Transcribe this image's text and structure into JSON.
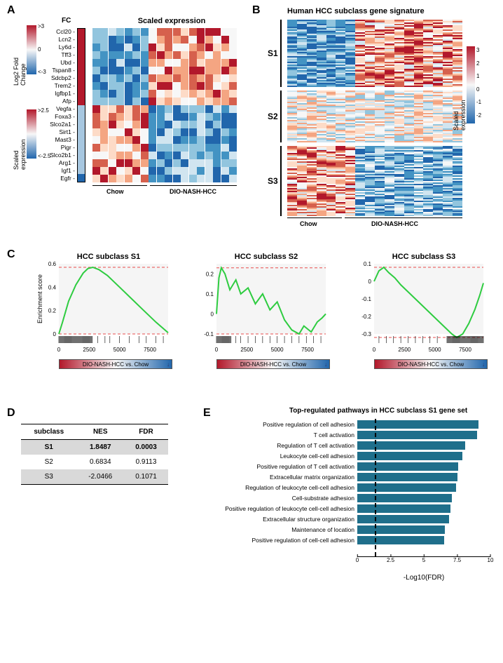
{
  "panelA": {
    "fc_header": "FC",
    "se_header": "Scaled expression",
    "legend_fc": {
      "title": "Log2 Fold Change",
      "top": ">3",
      "mid": "0",
      "bot": "<-3"
    },
    "legend_se": {
      "title": "Scaled expression",
      "top": ">2.5",
      "bot": "<-2.5"
    },
    "xaxis": {
      "left": "Chow",
      "right": "DIO-NASH-HCC"
    },
    "genes": [
      "Ccl20",
      "Lcn2",
      "Ly6d",
      "Tff3",
      "Ubd",
      "Tspan8",
      "Sdcbp2",
      "Trem2",
      "Igfbp1",
      "Afp",
      "Vegfa",
      "Foxa3",
      "Slco2a1",
      "Sirt1",
      "Mast3",
      "Pigr",
      "Slco2b1",
      "Arg1",
      "Igf1",
      "Egfr"
    ],
    "fc_colors": [
      "#b2182b",
      "#b2182b",
      "#b2182b",
      "#b2182b",
      "#b2182b",
      "#b2182b",
      "#b2182b",
      "#b2182b",
      "#b2182b",
      "#b2182b",
      "#a7c7e0",
      "#a7c7e0",
      "#a7c7e0",
      "#a7c7e0",
      "#a7c7e0",
      "#a7c7e0",
      "#a7c7e0",
      "#a7c7e0",
      "#a7c7e0",
      "#2166ac"
    ],
    "heat_palette": [
      "#2166ac",
      "#4393c3",
      "#92c5de",
      "#d1e5f0",
      "#f7f7f7",
      "#fddbc7",
      "#f4a582",
      "#d6604d",
      "#b2182b"
    ],
    "n_cols": 18,
    "chow_cols": 7
  },
  "panelB": {
    "title": "Human HCC subclass gene signature",
    "groups": [
      {
        "label": "S1",
        "h": 96
      },
      {
        "label": "S2",
        "h": 74
      },
      {
        "label": "S3",
        "h": 100
      }
    ],
    "legend": {
      "title": "Scaled expression",
      "ticks": [
        "3",
        "2",
        "1",
        "0",
        "-1",
        "-2"
      ]
    },
    "xaxis": {
      "left": "Chow",
      "right": "DIO-NASH-HCC"
    },
    "n_cols": 18,
    "chow_cols": 7,
    "heat_palette": [
      "#2166ac",
      "#4393c3",
      "#92c5de",
      "#d1e5f0",
      "#f7f7f7",
      "#fddbc7",
      "#f4a582",
      "#d6604d",
      "#b2182b"
    ]
  },
  "panelC": {
    "ylabel": "Enrichment score",
    "gradbar_label": "DIO-NASH-HCC vs. Chow",
    "plots": [
      {
        "title": "HCC subclass  S1",
        "ylim": [
          0,
          0.6
        ],
        "yticks": [
          0,
          0.2,
          0.4,
          0.6
        ],
        "xlim": [
          0,
          9000
        ],
        "xticks": [
          0,
          2500,
          5000,
          7500
        ],
        "dash_top": 0.57,
        "dash_bot": 0.0,
        "curve": [
          [
            0,
            0
          ],
          [
            300,
            0.1
          ],
          [
            800,
            0.28
          ],
          [
            1400,
            0.42
          ],
          [
            2000,
            0.52
          ],
          [
            2400,
            0.56
          ],
          [
            2800,
            0.57
          ],
          [
            3300,
            0.55
          ],
          [
            4000,
            0.5
          ],
          [
            5000,
            0.4
          ],
          [
            6000,
            0.3
          ],
          [
            7000,
            0.2
          ],
          [
            8000,
            0.1
          ],
          [
            9000,
            0.01
          ]
        ],
        "rug_dense_range": [
          0,
          2800
        ],
        "rug_sparse": [
          3200,
          3800,
          4200,
          5000,
          5800,
          6600,
          7200,
          8000,
          8600
        ]
      },
      {
        "title": "HCC subclass  S2",
        "ylim": [
          -0.1,
          0.25
        ],
        "yticks": [
          -0.1,
          0,
          0.1,
          0.2
        ],
        "xlim": [
          0,
          9000
        ],
        "xticks": [
          0,
          2500,
          5000,
          7500
        ],
        "dash_top": 0.23,
        "dash_bot": -0.1,
        "curve": [
          [
            0,
            0
          ],
          [
            200,
            0.18
          ],
          [
            400,
            0.23
          ],
          [
            700,
            0.2
          ],
          [
            1100,
            0.12
          ],
          [
            1600,
            0.17
          ],
          [
            2000,
            0.1
          ],
          [
            2600,
            0.13
          ],
          [
            3200,
            0.05
          ],
          [
            3800,
            0.1
          ],
          [
            4400,
            0.02
          ],
          [
            5000,
            0.06
          ],
          [
            5600,
            -0.03
          ],
          [
            6200,
            -0.08
          ],
          [
            6800,
            -0.1
          ],
          [
            7200,
            -0.06
          ],
          [
            7800,
            -0.09
          ],
          [
            8300,
            -0.04
          ],
          [
            8700,
            -0.02
          ],
          [
            9000,
            0
          ]
        ],
        "rug_dense_range": [
          0,
          1200
        ],
        "rug_sparse": [
          1600,
          2000,
          2600,
          3200,
          3800,
          4400,
          5000,
          5600,
          6200,
          6800,
          7400,
          8000,
          8600
        ]
      },
      {
        "title": "HCC subclass  S3",
        "ylim": [
          -0.3,
          0.1
        ],
        "yticks": [
          -0.3,
          -0.2,
          -0.1,
          0,
          0.1
        ],
        "xlim": [
          0,
          9000
        ],
        "xticks": [
          0,
          2500,
          5000,
          7500
        ],
        "dash_top": 0.08,
        "dash_bot": -0.32,
        "curve": [
          [
            0,
            0
          ],
          [
            400,
            0.06
          ],
          [
            800,
            0.08
          ],
          [
            1200,
            0.05
          ],
          [
            1700,
            0.02
          ],
          [
            2200,
            -0.02
          ],
          [
            2800,
            -0.06
          ],
          [
            3400,
            -0.1
          ],
          [
            4000,
            -0.14
          ],
          [
            4600,
            -0.18
          ],
          [
            5200,
            -0.22
          ],
          [
            5800,
            -0.26
          ],
          [
            6400,
            -0.3
          ],
          [
            6800,
            -0.32
          ],
          [
            7300,
            -0.3
          ],
          [
            7800,
            -0.24
          ],
          [
            8300,
            -0.16
          ],
          [
            8700,
            -0.08
          ],
          [
            9000,
            -0.01
          ]
        ],
        "rug_dense_range": [
          6000,
          9000
        ],
        "rug_sparse": [
          400,
          1000,
          1600,
          2200,
          2800,
          3400,
          4000,
          4600,
          5200
        ]
      }
    ]
  },
  "panelD": {
    "headers": [
      "subclass",
      "NES",
      "FDR"
    ],
    "rows": [
      {
        "cells": [
          "S1",
          "1.8487",
          "0.0003"
        ],
        "shade": true,
        "bold": true
      },
      {
        "cells": [
          "S2",
          "0.6834",
          "0.9113"
        ],
        "shade": false,
        "bold": false
      },
      {
        "cells": [
          "S3",
          "-2.0466",
          "0.1071"
        ],
        "shade": true,
        "bold": false
      }
    ]
  },
  "panelE": {
    "title": "Top-regulated pathways in HCC subclass S1 gene set",
    "xlabel": "-Log10(FDR)",
    "xmax": 10,
    "xticks": [
      0,
      2.5,
      5.0,
      7.5,
      10.0
    ],
    "bar_color": "#1f6f8b",
    "threshold_x": 1.3,
    "rows": [
      {
        "label": "Positive regulation of cell adhesion",
        "val": 9.1
      },
      {
        "label": "T cell activation",
        "val": 9.0
      },
      {
        "label": "Regulation of T cell activation",
        "val": 8.1
      },
      {
        "label": "Leukocyte cell-cell adhesion",
        "val": 7.9
      },
      {
        "label": "Positive regulation of T cell activation",
        "val": 7.6
      },
      {
        "label": "Extracellular matrix organization",
        "val": 7.5
      },
      {
        "label": "Regulation of leukocyte cell-cell adhesion",
        "val": 7.4
      },
      {
        "label": "Cell-substrate adhesion",
        "val": 7.1
      },
      {
        "label": "Positive regulation of leukocyte cell-cell adhesion",
        "val": 7.0
      },
      {
        "label": "Extracellular structure organization",
        "val": 6.9
      },
      {
        "label": "Maintenance of location",
        "val": 6.6
      },
      {
        "label": "Positive regulation of cell-cell adhesion",
        "val": 6.5
      }
    ]
  }
}
